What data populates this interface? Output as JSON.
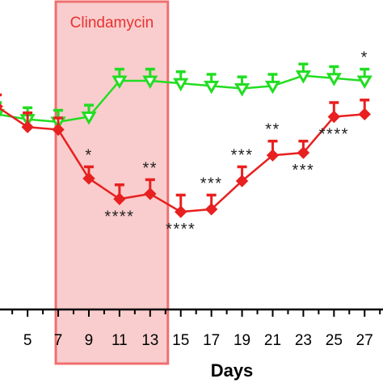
{
  "chart_data": {
    "type": "line",
    "xlabel": "Days",
    "ylabel": "",
    "x_ticks": [
      5,
      7,
      9,
      11,
      13,
      15,
      17,
      19,
      21,
      23,
      25,
      27
    ],
    "xlim": [
      3.2,
      28.2
    ],
    "ylim": [
      0,
      100
    ],
    "grid": false,
    "shaded_region": {
      "label": "Clindamycin",
      "x_start": 7,
      "x_end": 14,
      "color": "#f4a4a4",
      "border_color": "#ef6f6f"
    },
    "series": [
      {
        "color": "#22dd22",
        "marker": "triangle-down",
        "x": [
          3,
          5,
          7,
          9,
          11,
          13,
          15,
          17,
          19,
          21,
          23,
          25,
          27
        ],
        "y": [
          76,
          74,
          73,
          75,
          89,
          89,
          88,
          87,
          86,
          87,
          91,
          90,
          89
        ],
        "err": [
          2,
          2,
          2,
          2,
          2,
          2,
          2,
          2,
          2,
          2,
          2,
          2,
          2
        ],
        "significance": [
          "",
          "",
          "",
          "",
          "",
          "",
          "",
          "",
          "",
          "",
          "",
          "",
          "*"
        ]
      },
      {
        "color": "#e82020",
        "marker": "diamond",
        "x": [
          3,
          5,
          7,
          9,
          11,
          13,
          15,
          17,
          19,
          21,
          23,
          25,
          27
        ],
        "y": [
          79,
          71,
          70,
          51,
          43,
          45,
          38,
          39,
          50,
          60,
          61,
          75,
          76
        ],
        "err": [
          2,
          3,
          2,
          2,
          3,
          3,
          4,
          3,
          3,
          3,
          2,
          3,
          3
        ],
        "significance": [
          "",
          "",
          "",
          "*",
          "****",
          "**",
          "****",
          "***",
          "***",
          "**",
          "***",
          "****",
          ""
        ],
        "sig_position": [
          "",
          "",
          "",
          "above",
          "below",
          "above",
          "below",
          "above",
          "above",
          "above",
          "below",
          "below",
          ""
        ]
      }
    ]
  }
}
